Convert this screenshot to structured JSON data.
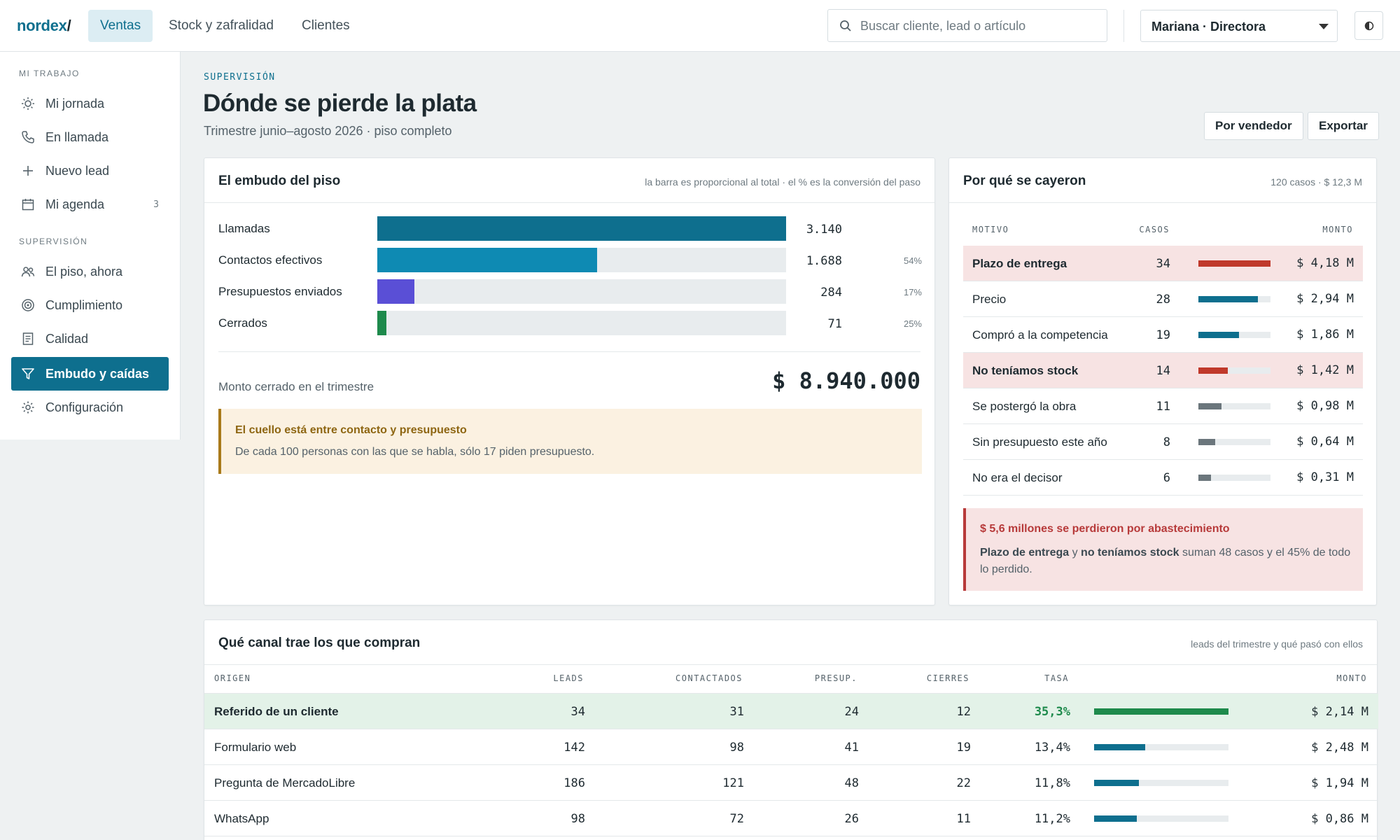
{
  "app": {
    "logo": "nordex",
    "logo_slash": "/"
  },
  "topnav": [
    {
      "label": "Ventas",
      "active": true
    },
    {
      "label": "Stock y zafralidad",
      "active": false
    },
    {
      "label": "Clientes",
      "active": false
    }
  ],
  "search": {
    "placeholder": "Buscar cliente, lead o artículo",
    "value": ""
  },
  "user": {
    "selected": "Mariana · Directora"
  },
  "sidebar": {
    "section1": "MI TRABAJO",
    "items1": [
      {
        "label": "Mi jornada",
        "icon": "sun-icon"
      },
      {
        "label": "En llamada",
        "icon": "phone-icon"
      },
      {
        "label": "Nuevo lead",
        "icon": "plus-icon"
      },
      {
        "label": "Mi agenda",
        "icon": "calendar-icon",
        "badge": "3"
      }
    ],
    "section2": "SUPERVISIÓN",
    "items2": [
      {
        "label": "El piso, ahora",
        "icon": "people-icon"
      },
      {
        "label": "Cumplimiento",
        "icon": "target-icon"
      },
      {
        "label": "Calidad",
        "icon": "document-icon"
      },
      {
        "label": "Embudo y caídas",
        "icon": "funnel-icon",
        "active": true
      },
      {
        "label": "Configuración",
        "icon": "gear-icon"
      }
    ]
  },
  "header": {
    "eyebrow": "SUPERVISIÓN",
    "title": "Dónde se pierde la plata",
    "subtitle": "Trimestre junio–agosto 2026 · piso completo",
    "btn_by_seller": "Por vendedor",
    "btn_export": "Exportar"
  },
  "funnel": {
    "title": "El embudo del piso",
    "hint": "la barra es proporcional al total · el % es la conversión del paso",
    "rows": [
      {
        "label": "Llamadas",
        "value": "3.140",
        "count": 3140,
        "pct": "",
        "color": "#0e6f8e"
      },
      {
        "label": "Contactos efectivos",
        "value": "1.688",
        "count": 1688,
        "pct": "54%",
        "color": "#0e8ab3"
      },
      {
        "label": "Presupuestos enviados",
        "value": "284",
        "count": 284,
        "pct": "17%",
        "color": "#5a4fd6"
      },
      {
        "label": "Cerrados",
        "value": "71",
        "count": 71,
        "pct": "25%",
        "color": "#1e8a4c"
      }
    ],
    "total_label": "Monto cerrado en el trimestre",
    "total_value": "$ 8.940.000",
    "callout_title": "El cuello está entre contacto y presupuesto",
    "callout_body": "De cada 100 personas con las que se habla, sólo 17 piden presupuesto."
  },
  "reasons": {
    "title": "Por qué se cayeron",
    "hint": "120 casos · $ 12,3 M",
    "headers": {
      "motivo": "MOTIVO",
      "casos": "CASOS"
    },
    "amount_header": "MONTO",
    "rows": [
      {
        "motivo": "Plazo de entrega",
        "casos": "34",
        "n": 34,
        "monto": "$ 4,18 M",
        "highlight": true,
        "color": "#c0392b"
      },
      {
        "motivo": "Precio",
        "casos": "28",
        "n": 28,
        "monto": "$ 2,94 M",
        "highlight": false,
        "color": "#0e6f8e"
      },
      {
        "motivo": "Compró a la competencia",
        "casos": "19",
        "n": 19,
        "monto": "$ 1,86 M",
        "highlight": false,
        "color": "#0e6f8e"
      },
      {
        "motivo": "No teníamos stock",
        "casos": "14",
        "n": 14,
        "monto": "$ 1,42 M",
        "highlight": true,
        "color": "#c0392b"
      },
      {
        "motivo": "Se postergó la obra",
        "casos": "11",
        "n": 11,
        "monto": "$ 0,98 M",
        "highlight": false,
        "color": "#6b767c"
      },
      {
        "motivo": "Sin presupuesto este año",
        "casos": "8",
        "n": 8,
        "monto": "$ 0,64 M",
        "highlight": false,
        "color": "#6b767c"
      },
      {
        "motivo": "No era el decisor",
        "casos": "6",
        "n": 6,
        "monto": "$ 0,31 M",
        "highlight": false,
        "color": "#6b767c"
      }
    ],
    "callout_title": "$ 5,6 millones se perdieron por abastecimiento",
    "callout_b1": "Plazo de entrega",
    "callout_t1": " y ",
    "callout_b2": "no teníamos stock",
    "callout_t2": " suman 48 casos y el 45% de todo lo perdido."
  },
  "channels": {
    "title": "Qué canal trae los que compran",
    "hint": "leads del trimestre y qué pasó con ellos",
    "headers": {
      "origen": "ORIGEN",
      "leads": "LEADS",
      "contactados": "CONTACTADOS",
      "presup": "PRESUP.",
      "cierres": "CIERRES",
      "tasa": "TASA",
      "monto": "MONTO"
    },
    "rows": [
      {
        "origen": "Referido de un cliente",
        "leads": "34",
        "contactados": "31",
        "presup": "24",
        "cierres": "12",
        "tasa": "35,3%",
        "rate": 35.3,
        "monto": "$ 2,14 M",
        "highlight": true,
        "color": "#1e8a4c"
      },
      {
        "origen": "Formulario web",
        "leads": "142",
        "contactados": "98",
        "presup": "41",
        "cierres": "19",
        "tasa": "13,4%",
        "rate": 13.4,
        "monto": "$ 2,48 M",
        "highlight": false,
        "color": "#0e6f8e"
      },
      {
        "origen": "Pregunta de MercadoLibre",
        "leads": "186",
        "contactados": "121",
        "presup": "48",
        "cierres": "22",
        "tasa": "11,8%",
        "rate": 11.8,
        "monto": "$ 1,94 M",
        "highlight": false,
        "color": "#0e6f8e"
      },
      {
        "origen": "WhatsApp",
        "leads": "98",
        "contactados": "72",
        "presup": "26",
        "cierres": "11",
        "tasa": "11,2%",
        "rate": 11.2,
        "monto": "$ 0,86 M",
        "highlight": false,
        "color": "#0e6f8e"
      }
    ]
  }
}
